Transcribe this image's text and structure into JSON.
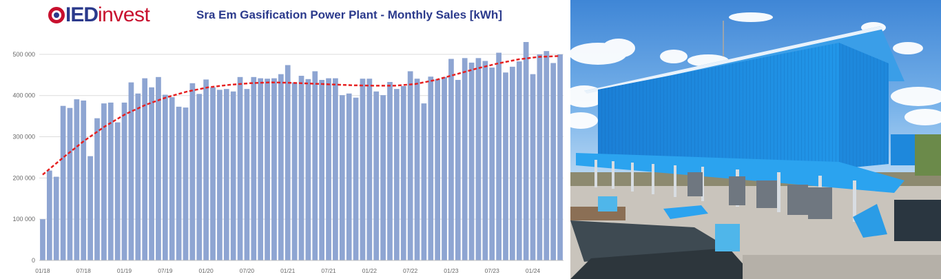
{
  "logo": {
    "part_a": "IED",
    "part_b": "invest"
  },
  "chart_data": {
    "type": "bar",
    "title": "Sra Em Gasification Power Plant - Monthly Sales [kWh]",
    "ylim": [
      0,
      540000
    ],
    "yticks": [
      0,
      100000,
      200000,
      300000,
      400000,
      500000
    ],
    "ytick_labels": [
      "0",
      "100 000",
      "200 000",
      "300 000",
      "400 000",
      "500 000"
    ],
    "xtick_labels": [
      "01/18",
      "07/18",
      "01/19",
      "07/19",
      "01/20",
      "07/20",
      "01/21",
      "07/21",
      "01/22",
      "07/22",
      "01/23",
      "07/23",
      "01/24"
    ],
    "grid": true,
    "bar_color": "#8ea5d2",
    "trend_color": "#e62020",
    "values": [
      100000,
      218000,
      203000,
      375000,
      370000,
      391000,
      388000,
      253000,
      345000,
      381000,
      383000,
      335000,
      383000,
      432000,
      405000,
      442000,
      420000,
      445000,
      402000,
      396000,
      373000,
      371000,
      430000,
      404000,
      439000,
      420000,
      414000,
      416000,
      410000,
      445000,
      416000,
      445000,
      442000,
      441000,
      442000,
      452000,
      474000,
      432000,
      448000,
      440000,
      459000,
      438000,
      442000,
      442000,
      401000,
      405000,
      395000,
      441000,
      441000,
      410000,
      401000,
      433000,
      416000,
      423000,
      459000,
      441000,
      381000,
      446000,
      440000,
      445000,
      489000,
      438000,
      491000,
      480000,
      491000,
      484000,
      468000,
      504000,
      456000,
      470000,
      483000,
      530000,
      452000,
      500000,
      508000,
      479000,
      500000
    ],
    "trend": [
      208000,
      250000,
      290000,
      325000,
      355000,
      378000,
      396000,
      410000,
      420000,
      426000,
      430000,
      432000,
      431000,
      429000,
      427000,
      425000,
      424000,
      424000,
      428000,
      438000,
      452000,
      466000,
      478000,
      488000,
      494000,
      496000
    ]
  },
  "photo": {
    "description_icon": "power-plant-building"
  }
}
